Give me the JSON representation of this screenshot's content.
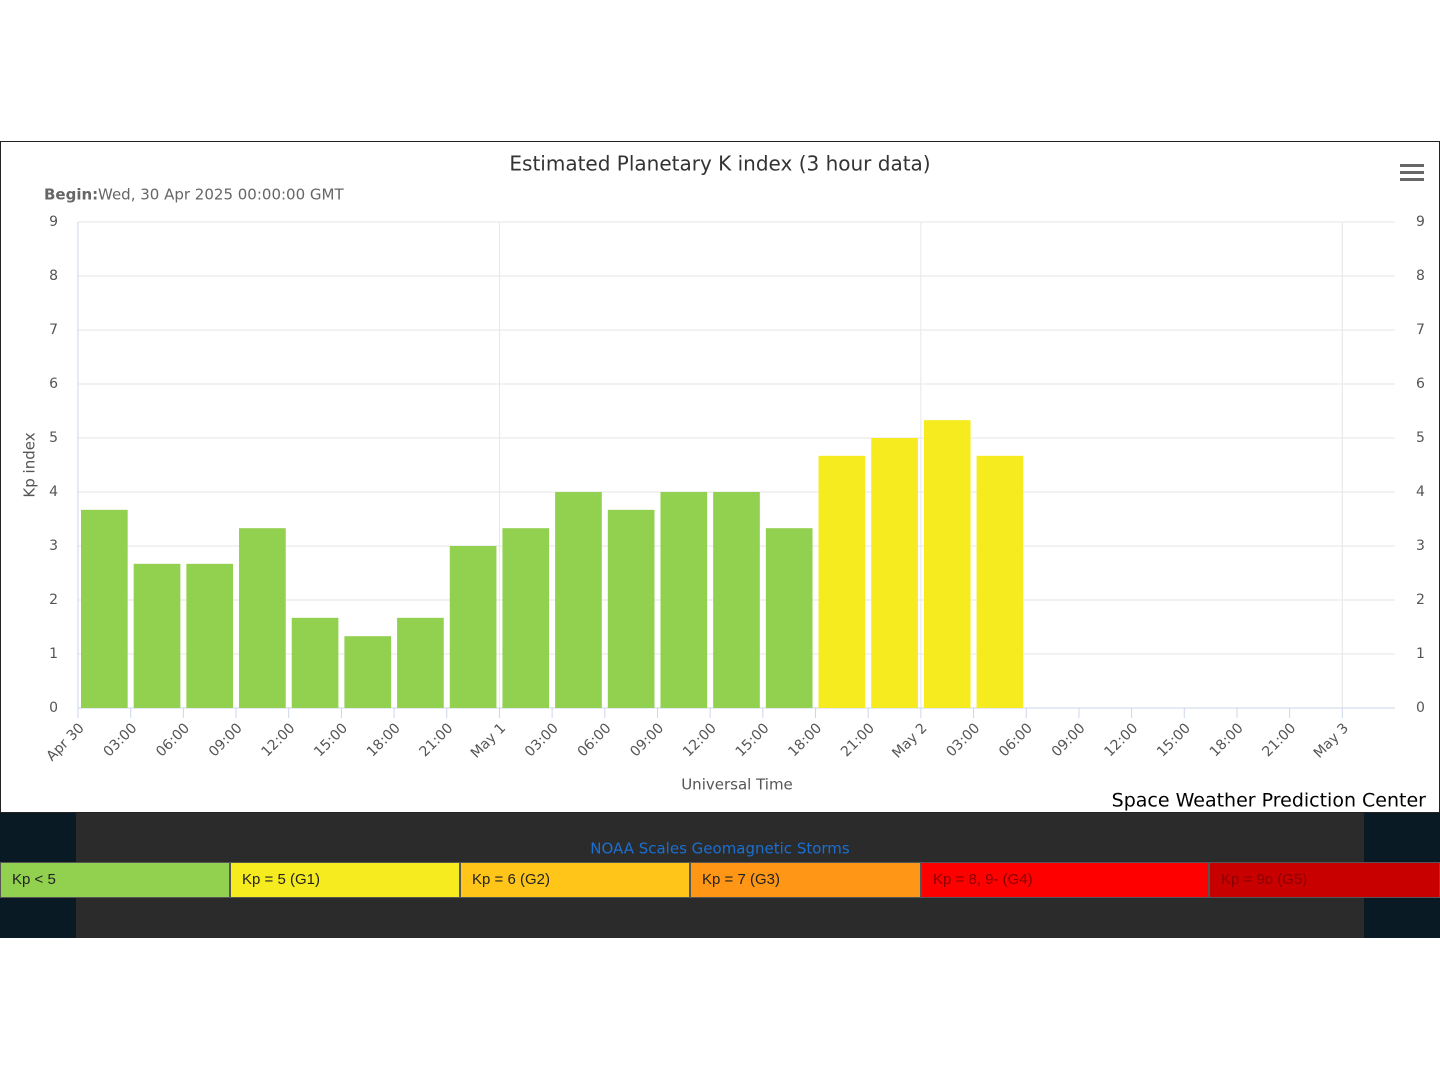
{
  "chart_data": {
    "type": "bar",
    "title": "Estimated Planetary K index (3 hour data)",
    "subtitle_label": "Begin:",
    "subtitle": "Wed, 30 Apr 2025 00:00:00 GMT",
    "ylabel": "Kp index",
    "xlabel": "Universal Time",
    "credit": "Space Weather Prediction Center",
    "x": [
      0,
      3,
      6,
      9,
      12,
      15,
      18,
      21,
      24,
      27,
      30,
      33,
      36,
      39,
      42,
      45,
      48,
      51
    ],
    "bar_width": 3,
    "series": [
      {
        "values": [
          3.67,
          2.67,
          2.67,
          3.33,
          1.67,
          1.33,
          1.67,
          3,
          3.33,
          4,
          3.67,
          4,
          4,
          3.33,
          4.67,
          5,
          5.33,
          4.67
        ],
        "colors": [
          "#92d050",
          "#92d050",
          "#92d050",
          "#92d050",
          "#92d050",
          "#92d050",
          "#92d050",
          "#92d050",
          "#92d050",
          "#92d050",
          "#92d050",
          "#92d050",
          "#92d050",
          "#92d050",
          "#f6eb1f",
          "#f6eb1f",
          "#f6eb1f",
          "#f6eb1f"
        ]
      }
    ],
    "xlim": [
      0,
      75
    ],
    "xticks": [
      {
        "value": 0,
        "label": "Apr 30"
      },
      {
        "value": 3,
        "label": "03:00"
      },
      {
        "value": 6,
        "label": "06:00"
      },
      {
        "value": 9,
        "label": "09:00"
      },
      {
        "value": 12,
        "label": "12:00"
      },
      {
        "value": 15,
        "label": "15:00"
      },
      {
        "value": 18,
        "label": "18:00"
      },
      {
        "value": 21,
        "label": "21:00"
      },
      {
        "value": 24,
        "label": "May 1"
      },
      {
        "value": 27,
        "label": "03:00"
      },
      {
        "value": 30,
        "label": "06:00"
      },
      {
        "value": 33,
        "label": "09:00"
      },
      {
        "value": 36,
        "label": "12:00"
      },
      {
        "value": 39,
        "label": "15:00"
      },
      {
        "value": 42,
        "label": "18:00"
      },
      {
        "value": 45,
        "label": "21:00"
      },
      {
        "value": 48,
        "label": "May 2"
      },
      {
        "value": 51,
        "label": "03:00"
      },
      {
        "value": 54,
        "label": "06:00"
      },
      {
        "value": 57,
        "label": "09:00"
      },
      {
        "value": 60,
        "label": "12:00"
      },
      {
        "value": 63,
        "label": "15:00"
      },
      {
        "value": 66,
        "label": "18:00"
      },
      {
        "value": 69,
        "label": "21:00"
      },
      {
        "value": 72,
        "label": "May 3"
      }
    ],
    "ylim": [
      0,
      9
    ],
    "yticks": [
      0,
      1,
      2,
      3,
      4,
      5,
      6,
      7,
      8,
      9
    ],
    "y2lim": [
      0,
      9
    ],
    "y2ticks": [
      0,
      1,
      2,
      3,
      4,
      5,
      6,
      7,
      8,
      9
    ],
    "grid": true
  },
  "scale_link": "NOAA Scales Geomagnetic Storms",
  "scale_legend": [
    {
      "label": "Kp < 5",
      "color": "#92d050"
    },
    {
      "label": "Kp = 5 (G1)",
      "color": "#f6eb1f"
    },
    {
      "label": "Kp = 6 (G2)",
      "color": "#ffc619"
    },
    {
      "label": "Kp = 7 (G3)",
      "color": "#ff9615"
    },
    {
      "label": "Kp = 8, 9- (G4)",
      "color": "#ff0000"
    },
    {
      "label": "Kp = 9o (G5)",
      "color": "#c80000"
    }
  ]
}
